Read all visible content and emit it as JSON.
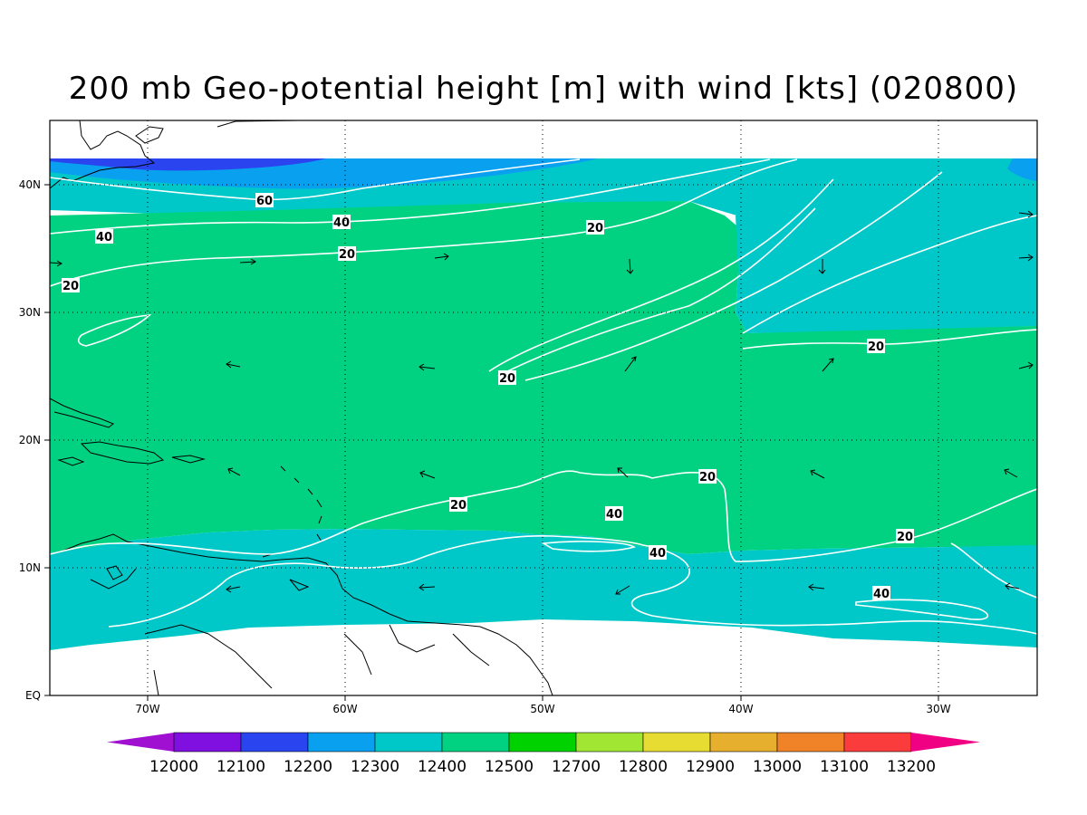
{
  "title": "200 mb Geo-potential height [m] with wind [kts] (020800)",
  "axes": {
    "lon_labels": [
      "70W",
      "60W",
      "50W",
      "40W",
      "30W"
    ],
    "lat_labels": [
      "EQ",
      "10N",
      "20N",
      "30N",
      "40N"
    ]
  },
  "colorbar": {
    "colors": [
      "#a010d0",
      "#8010e0",
      "#2a44f0",
      "#0aa0f0",
      "#00c8c8",
      "#00d282",
      "#00d200",
      "#a0e632",
      "#e6dc32",
      "#e6af2d",
      "#f08228",
      "#fa3c3c",
      "#f00082"
    ],
    "labels": [
      "12000",
      "12100",
      "12200",
      "12300",
      "12400",
      "12500",
      "12700",
      "12800",
      "12900",
      "13000",
      "13100",
      "13200"
    ]
  },
  "fill_colors": {
    "dark_blue": "#2a44f0",
    "light_blue": "#0aa0f0",
    "teal": "#00c8c8",
    "green": "#00d282"
  },
  "isotach_labels": [
    {
      "label": "60"
    },
    {
      "label": "40"
    },
    {
      "label": "40"
    },
    {
      "label": "20"
    },
    {
      "label": "20"
    },
    {
      "label": "20"
    },
    {
      "label": "20"
    },
    {
      "label": "20"
    },
    {
      "label": "20"
    },
    {
      "label": "20"
    },
    {
      "label": "20"
    },
    {
      "label": "40"
    },
    {
      "label": "40"
    },
    {
      "label": "40"
    }
  ]
}
